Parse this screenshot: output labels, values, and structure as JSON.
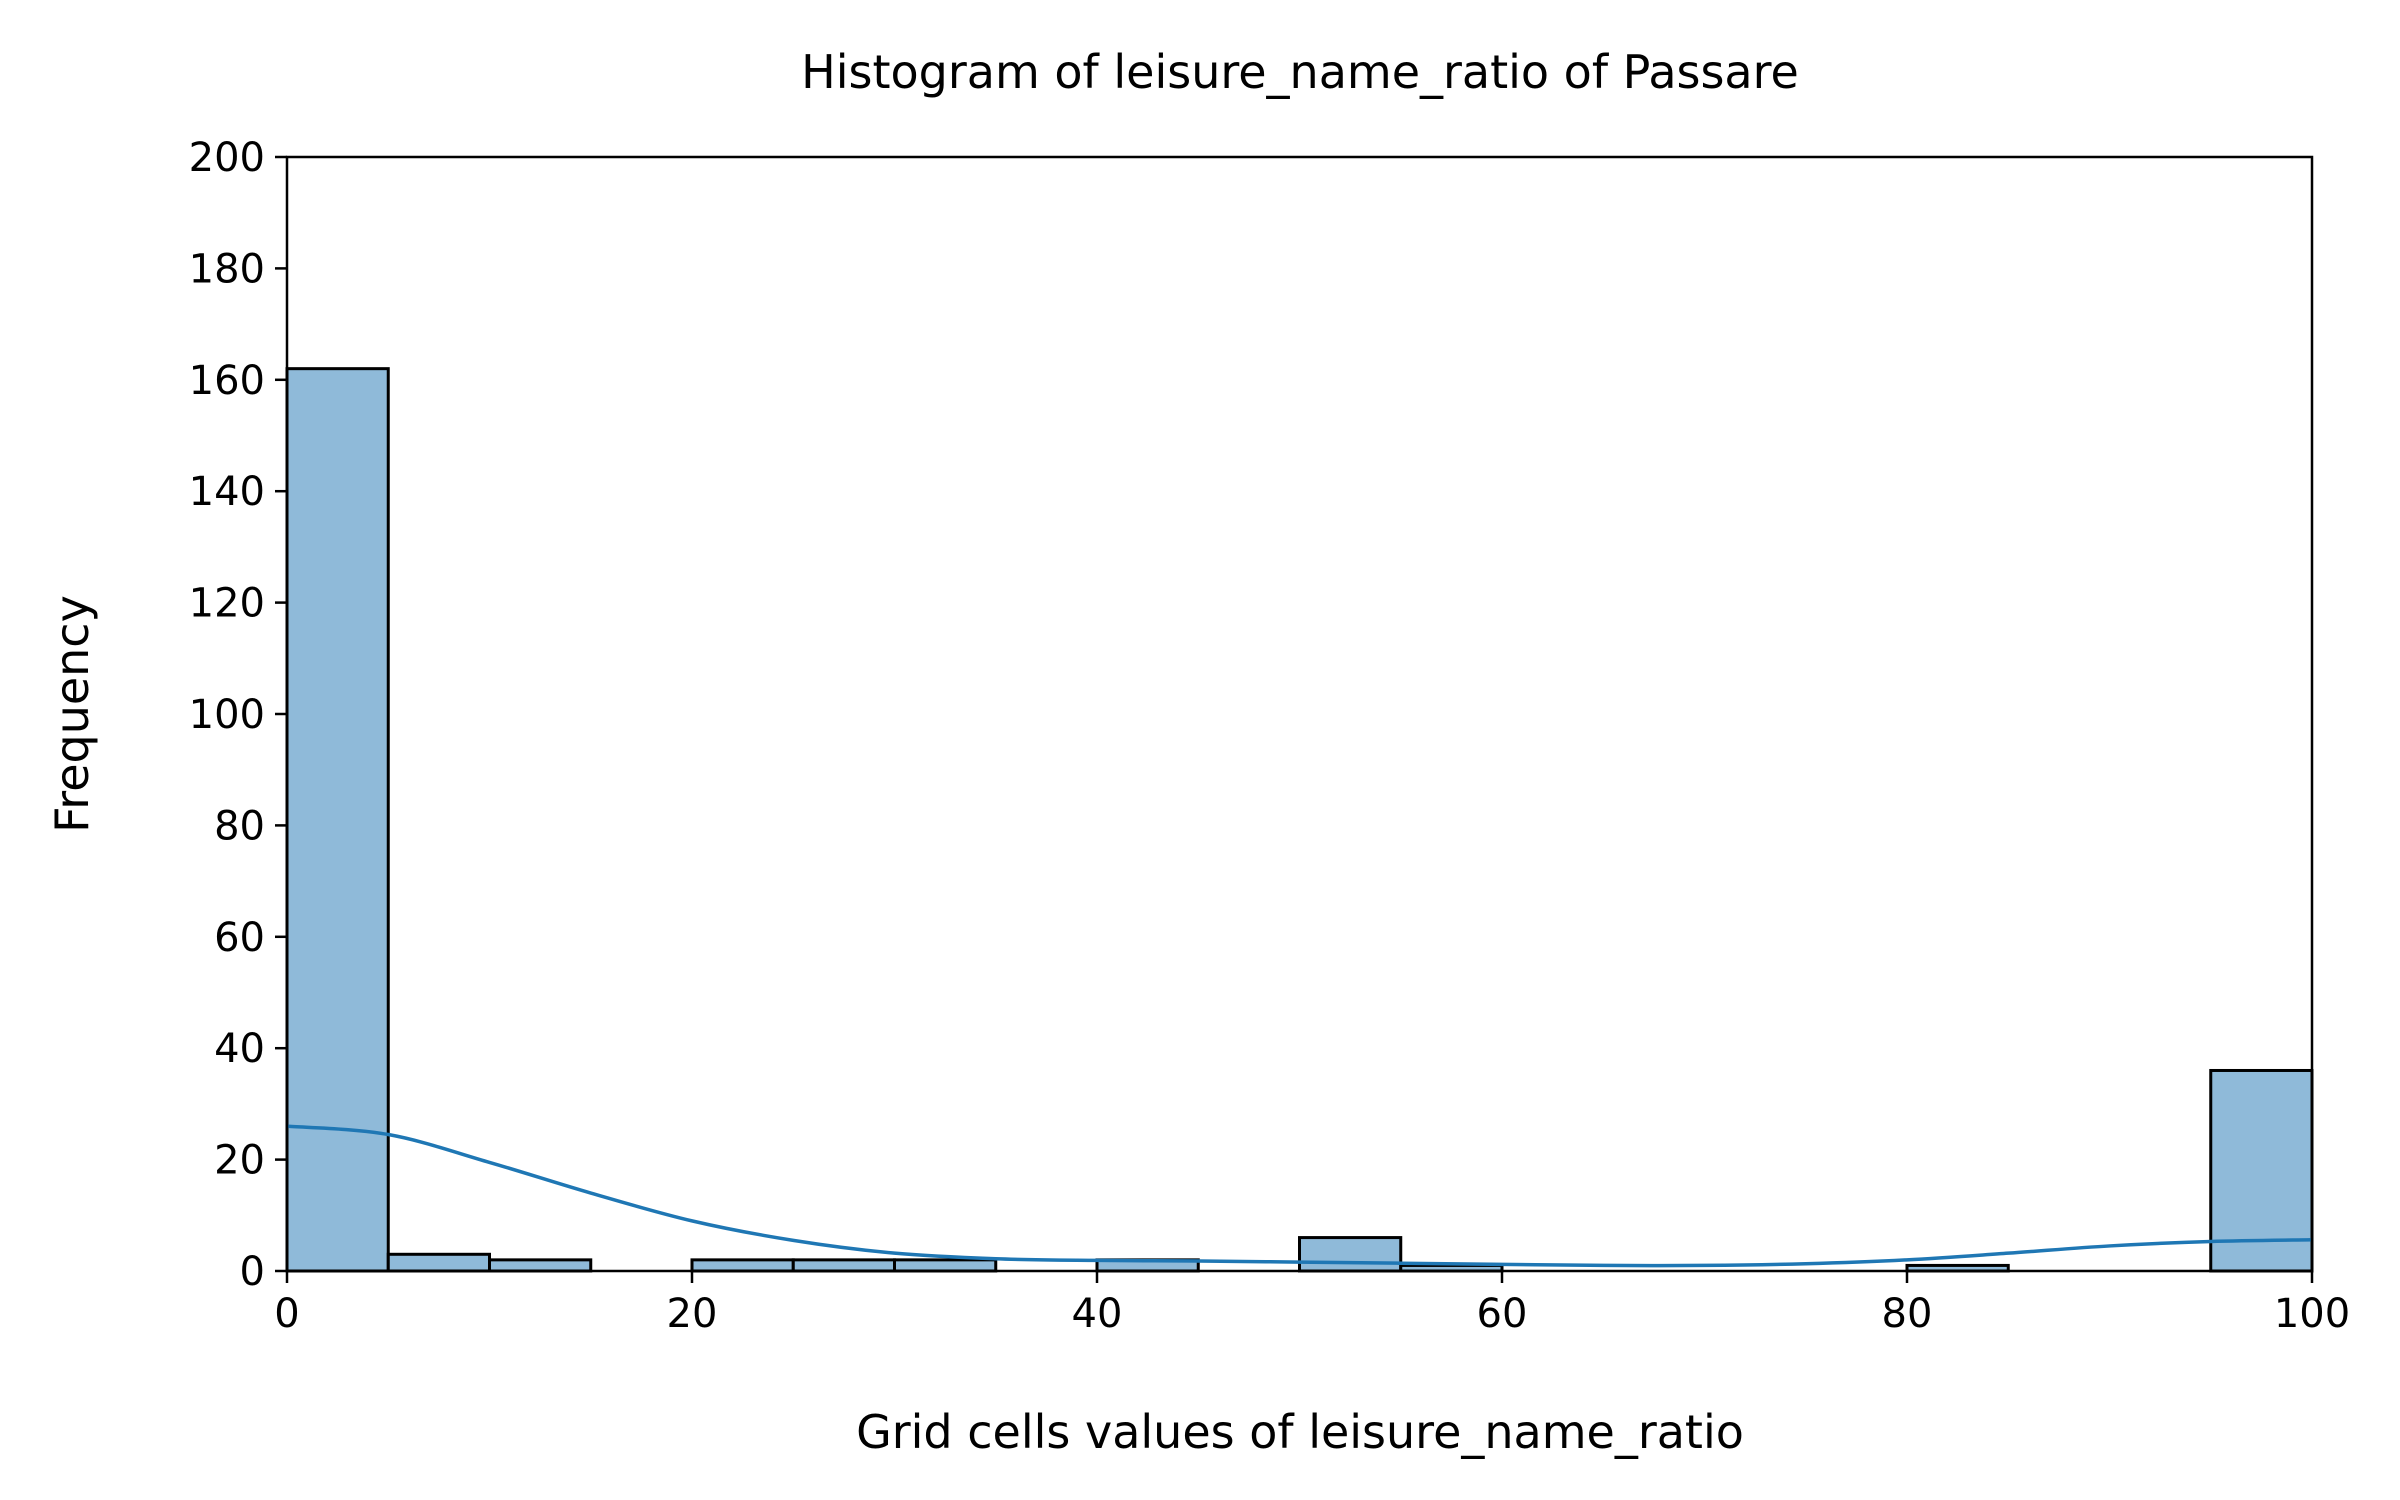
{
  "chart_data": {
    "type": "bar",
    "title": "Histogram of leisure_name_ratio of Passare",
    "xlabel": "Grid cells values of leisure_name_ratio",
    "ylabel": "Frequency",
    "xlim": [
      0,
      100
    ],
    "ylim": [
      0,
      200
    ],
    "xticks": [
      0,
      20,
      40,
      60,
      80,
      100
    ],
    "yticks": [
      0,
      20,
      40,
      60,
      80,
      100,
      120,
      140,
      160,
      180,
      200
    ],
    "grid": false,
    "bin_width": 5,
    "bins": [
      {
        "x0": 0,
        "x1": 5,
        "count": 162
      },
      {
        "x0": 5,
        "x1": 10,
        "count": 3
      },
      {
        "x0": 10,
        "x1": 15,
        "count": 2
      },
      {
        "x0": 15,
        "x1": 20,
        "count": 0
      },
      {
        "x0": 20,
        "x1": 25,
        "count": 2
      },
      {
        "x0": 25,
        "x1": 30,
        "count": 2
      },
      {
        "x0": 30,
        "x1": 35,
        "count": 2
      },
      {
        "x0": 35,
        "x1": 40,
        "count": 0
      },
      {
        "x0": 40,
        "x1": 45,
        "count": 2
      },
      {
        "x0": 45,
        "x1": 50,
        "count": 0
      },
      {
        "x0": 50,
        "x1": 55,
        "count": 6
      },
      {
        "x0": 55,
        "x1": 60,
        "count": 1
      },
      {
        "x0": 60,
        "x1": 65,
        "count": 0
      },
      {
        "x0": 65,
        "x1": 70,
        "count": 0
      },
      {
        "x0": 70,
        "x1": 75,
        "count": 0
      },
      {
        "x0": 75,
        "x1": 80,
        "count": 0
      },
      {
        "x0": 80,
        "x1": 85,
        "count": 1
      },
      {
        "x0": 85,
        "x1": 90,
        "count": 0
      },
      {
        "x0": 90,
        "x1": 95,
        "count": 0
      },
      {
        "x0": 95,
        "x1": 100,
        "count": 36
      }
    ],
    "kde": {
      "x": [
        0,
        5,
        10,
        15,
        20,
        25,
        30,
        35,
        40,
        45,
        50,
        55,
        60,
        65,
        70,
        75,
        80,
        85,
        90,
        95,
        100
      ],
      "y": [
        26,
        24.5,
        19.5,
        14,
        9,
        5.5,
        3.2,
        2.2,
        1.9,
        1.8,
        1.6,
        1.4,
        1.2,
        1.0,
        1.0,
        1.3,
        2.0,
        3.2,
        4.5,
        5.3,
        5.6
      ]
    },
    "colors": {
      "bar_fill": "#8fbad9",
      "bar_edge": "#000000",
      "kde_line": "#1f77b4"
    }
  }
}
